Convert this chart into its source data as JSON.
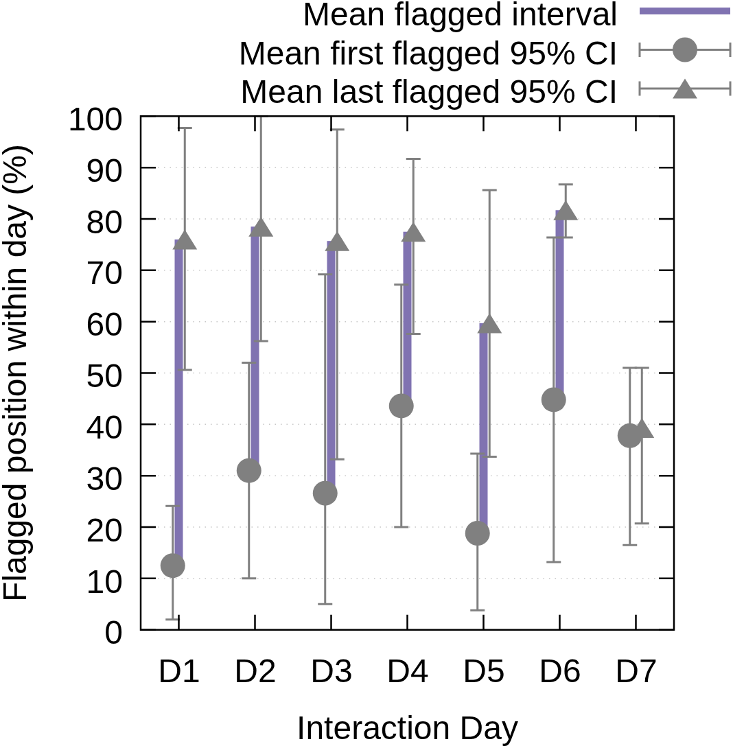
{
  "chart_data": {
    "type": "scatter",
    "xlabel": "Interaction Day",
    "ylabel": "Flagged position within day (%)",
    "categories": [
      "D1",
      "D2",
      "D3",
      "D4",
      "D5",
      "D6",
      "D7"
    ],
    "ylim": [
      0,
      100
    ],
    "yticks": [
      0,
      10,
      20,
      30,
      40,
      50,
      60,
      70,
      80,
      90,
      100
    ],
    "grid": "y",
    "legend": "top right",
    "series": [
      {
        "name": "Mean flagged interval",
        "type": "bar",
        "color": "#8073b1",
        "base": [
          12.5,
          31.0,
          26.6,
          43.6,
          18.8,
          44.8,
          null
        ],
        "values": [
          63.5,
          47.5,
          49.1,
          33.9,
          40.9,
          36.9,
          null
        ]
      },
      {
        "name": "Mean first flagged 95% CI",
        "marker": "circle",
        "color": "#808080",
        "values": [
          12.5,
          31.0,
          26.6,
          43.6,
          18.8,
          44.8,
          37.8
        ],
        "errors": [
          [
            2.0,
            24.1
          ],
          [
            10.0,
            52.0
          ],
          [
            5.0,
            69.2
          ],
          [
            20.0,
            67.2
          ],
          [
            3.8,
            34.3
          ],
          [
            13.2,
            76.4
          ],
          [
            16.5,
            51.0
          ]
        ]
      },
      {
        "name": "Mean last flagged 95% CI",
        "marker": "triangle",
        "color": "#808080",
        "values": [
          76.0,
          78.5,
          75.7,
          77.5,
          59.7,
          81.7,
          39.3
        ],
        "errors": [
          [
            50.6,
            97.7
          ],
          [
            56.2,
            100.0
          ],
          [
            33.2,
            97.4
          ],
          [
            57.6,
            91.7
          ],
          [
            33.7,
            85.6
          ],
          [
            76.4,
            86.7
          ],
          [
            20.7,
            51.0
          ]
        ]
      }
    ]
  }
}
